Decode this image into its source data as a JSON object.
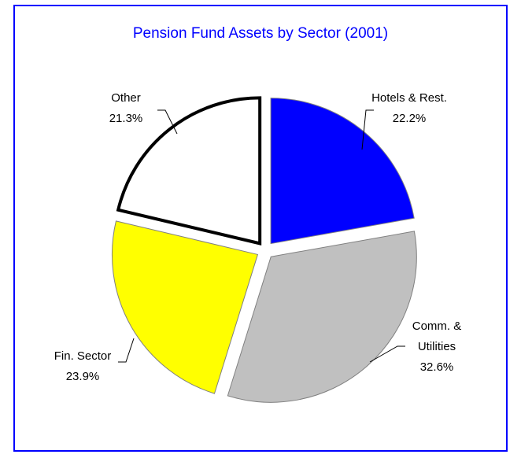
{
  "chart_data": {
    "type": "pie",
    "title": "Pension Fund Assets by Sector (2001)",
    "categories": [
      "Hotels & Rest.",
      "Comm. & Utilities",
      "Fin. Sector",
      "Other"
    ],
    "values": [
      22.2,
      32.6,
      23.9,
      21.3
    ],
    "value_labels": [
      "22.2%",
      "32.6%",
      "23.9%",
      "21.3%"
    ],
    "colors": [
      "#0000ff",
      "#c0c0c0",
      "#ffff00",
      "#ffffff"
    ],
    "edge_colors": [
      "#808080",
      "#808080",
      "#808080",
      "#000000"
    ]
  }
}
